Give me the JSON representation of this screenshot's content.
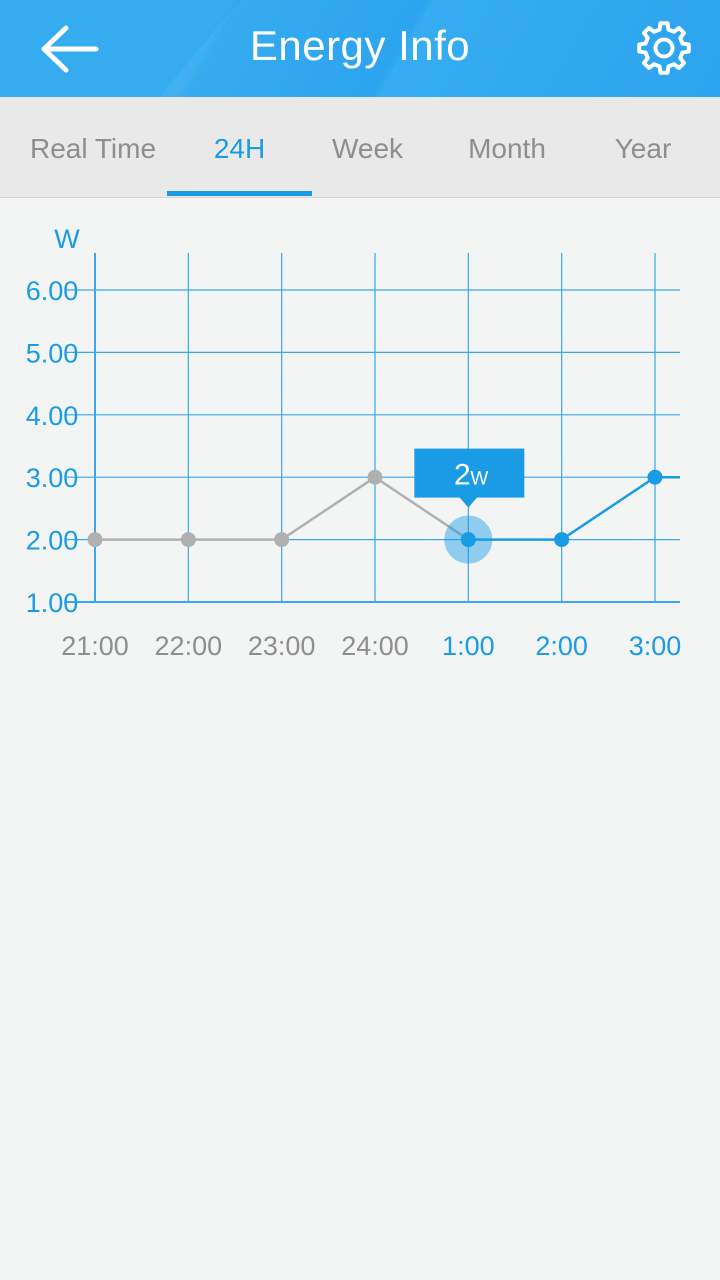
{
  "header": {
    "title": "Energy Info",
    "back_icon": "arrow-left-icon",
    "settings_icon": "gear-icon"
  },
  "tabs": [
    {
      "label": "Real Time",
      "active": false
    },
    {
      "label": "24H",
      "active": true
    },
    {
      "label": "Week",
      "active": false
    },
    {
      "label": "Month",
      "active": false
    },
    {
      "label": "Year",
      "active": false
    }
  ],
  "colors": {
    "accent": "#199be6",
    "header": "#2aa6ef",
    "past_line": "#b0b0b0",
    "grid": "#39a8ec"
  },
  "chart_data": {
    "type": "line",
    "ylabel": "W",
    "ylim": [
      1,
      6
    ],
    "yticks": [
      "6.00",
      "5.00",
      "4.00",
      "3.00",
      "2.00",
      "1.00"
    ],
    "categories": [
      "21:00",
      "22:00",
      "23:00",
      "24:00",
      "1:00",
      "2:00",
      "3:00"
    ],
    "values": [
      2,
      2,
      2,
      3,
      2,
      2,
      3
    ],
    "grid": true,
    "selected_index": 4,
    "tooltip": {
      "value": "2",
      "unit": "W"
    }
  }
}
